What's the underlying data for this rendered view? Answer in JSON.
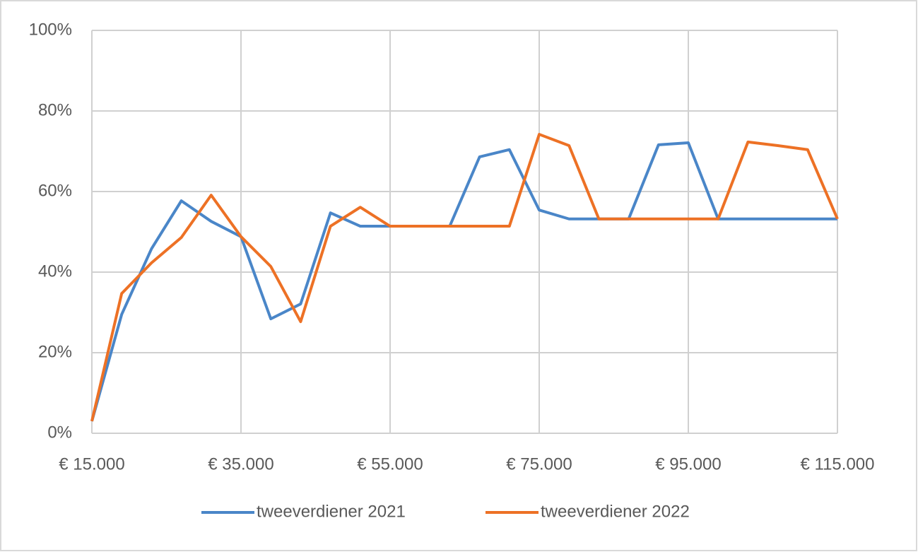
{
  "chart_data": {
    "type": "line",
    "x": [
      15000,
      19000,
      23000,
      27000,
      31000,
      35000,
      39000,
      43000,
      47000,
      51000,
      55000,
      59000,
      63000,
      67000,
      71000,
      75000,
      79000,
      83000,
      87000,
      91000,
      95000,
      99000,
      103000,
      107000,
      111000,
      115000
    ],
    "series": [
      {
        "name": "tweeverdiener 2021",
        "color": "#4a86c8",
        "values": [
          3,
          29.5,
          45.8,
          57.7,
          52.6,
          48.8,
          28.4,
          32.1,
          54.7,
          51.4,
          51.4,
          51.4,
          51.4,
          68.6,
          70.4,
          55.4,
          53.2,
          53.2,
          53.2,
          71.6,
          72.1,
          53.2,
          53.2,
          53.2,
          53.2,
          53.2
        ]
      },
      {
        "name": "tweeverdiener 2022",
        "color": "#ed7125",
        "values": [
          3,
          34.7,
          42.3,
          48.6,
          59.1,
          48.8,
          41.4,
          27.7,
          51.4,
          56.1,
          51.4,
          51.4,
          51.4,
          51.4,
          51.4,
          74.2,
          71.4,
          53.2,
          53.2,
          53.2,
          53.2,
          53.2,
          72.3,
          71.4,
          70.4,
          53.2
        ]
      }
    ],
    "xlim": [
      15000,
      115000
    ],
    "xticks": [
      {
        "value": 15000,
        "label": "€ 15.000"
      },
      {
        "value": 35000,
        "label": "€ 35.000"
      },
      {
        "value": 55000,
        "label": "€ 55.000"
      },
      {
        "value": 75000,
        "label": "€ 75.000"
      },
      {
        "value": 95000,
        "label": "€ 95.000"
      },
      {
        "value": 115000,
        "label": "€ 115.000"
      }
    ],
    "ylim": [
      0,
      100
    ],
    "yticks": [
      {
        "value": 0,
        "label": "0%"
      },
      {
        "value": 20,
        "label": "20%"
      },
      {
        "value": 40,
        "label": "40%"
      },
      {
        "value": 60,
        "label": "60%"
      },
      {
        "value": 80,
        "label": "80%"
      },
      {
        "value": 100,
        "label": "100%"
      }
    ],
    "grid": true,
    "legend": "bottom"
  }
}
